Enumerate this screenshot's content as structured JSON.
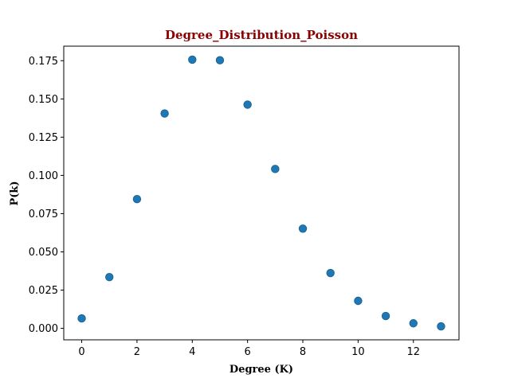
{
  "chart_data": {
    "type": "scatter",
    "title": "Degree_Distribution_Poisson",
    "xlabel": "Degree (K)",
    "ylabel": "P(k)",
    "xlim": [
      -0.65,
      13.65
    ],
    "ylim": [
      -0.0075,
      0.1845
    ],
    "xticks": [
      0,
      2,
      4,
      6,
      8,
      10,
      12
    ],
    "xtick_labels": [
      "0",
      "2",
      "4",
      "6",
      "8",
      "10",
      "12"
    ],
    "yticks": [
      0.0,
      0.025,
      0.05,
      0.075,
      0.1,
      0.125,
      0.15,
      0.175
    ],
    "ytick_labels": [
      "0.000",
      "0.025",
      "0.050",
      "0.075",
      "0.100",
      "0.125",
      "0.150",
      "0.175"
    ],
    "grid": false,
    "legend": false,
    "colors": {
      "marker": "#1f77b4",
      "title": "#8b0000",
      "axis": "#000000"
    },
    "series": [
      {
        "x": [
          0,
          1,
          2,
          3,
          4,
          5,
          6,
          7,
          8,
          9,
          10,
          11,
          12,
          13
        ],
        "y": [
          0.0065,
          0.0335,
          0.0845,
          0.1405,
          0.1757,
          0.1753,
          0.1463,
          0.1042,
          0.0652,
          0.0362,
          0.018,
          0.0081,
          0.0033,
          0.0013
        ]
      }
    ]
  }
}
